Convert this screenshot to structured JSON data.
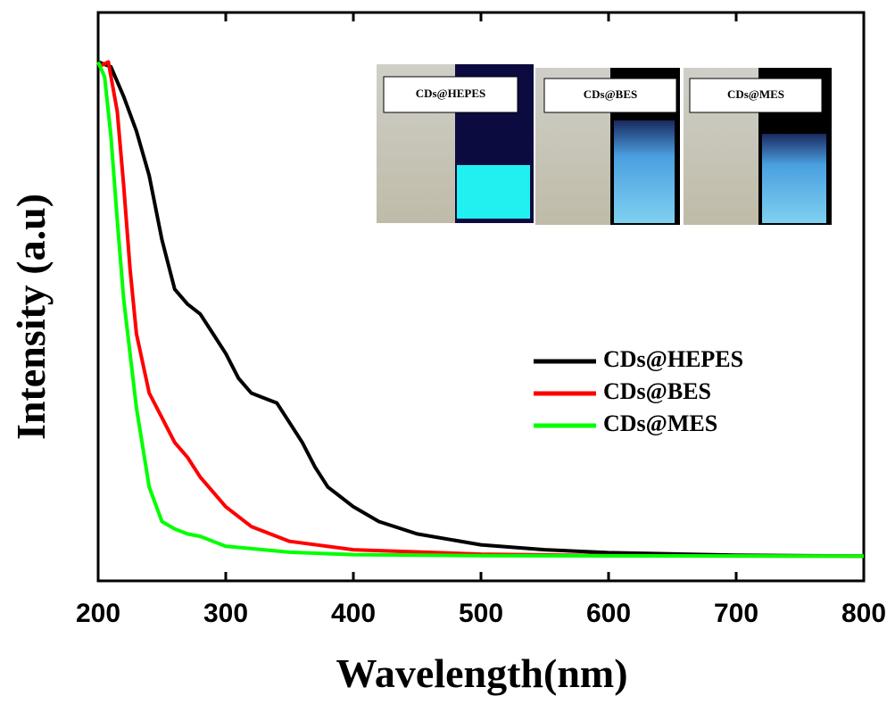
{
  "chart_data": {
    "type": "line",
    "x_label": "Wavelength(nm)",
    "y_label": "Intensity (a.u)",
    "xlim": [
      200,
      800
    ],
    "xticks": [
      200,
      300,
      400,
      500,
      600,
      700,
      800
    ],
    "ylim": [
      -0.05,
      1.1
    ],
    "inset_labels": [
      "CDs@HEPES",
      "CDs@BES",
      "CDs@MES"
    ],
    "series": [
      {
        "name": "CDs@HEPES",
        "color": "#000000",
        "x": [
          200,
          210,
          220,
          230,
          240,
          250,
          260,
          270,
          280,
          290,
          300,
          310,
          320,
          330,
          340,
          350,
          360,
          370,
          380,
          400,
          420,
          450,
          500,
          550,
          600,
          700,
          800
        ],
        "values": [
          1.0,
          0.99,
          0.93,
          0.86,
          0.77,
          0.64,
          0.54,
          0.51,
          0.49,
          0.45,
          0.41,
          0.36,
          0.33,
          0.32,
          0.31,
          0.27,
          0.23,
          0.18,
          0.14,
          0.1,
          0.07,
          0.045,
          0.023,
          0.013,
          0.007,
          0.002,
          0
        ]
      },
      {
        "name": "CDs@BES",
        "color": "#ff0000",
        "x": [
          200,
          208,
          215,
          220,
          225,
          230,
          240,
          250,
          260,
          270,
          280,
          290,
          300,
          320,
          350,
          400,
          500,
          600,
          800
        ],
        "values": [
          0.99,
          1.0,
          0.9,
          0.75,
          0.58,
          0.45,
          0.33,
          0.28,
          0.23,
          0.2,
          0.16,
          0.13,
          0.1,
          0.06,
          0.03,
          0.013,
          0.004,
          0.001,
          0
        ]
      },
      {
        "name": "CDs@MES",
        "color": "#00ff00",
        "x": [
          200,
          205,
          210,
          215,
          220,
          230,
          240,
          250,
          260,
          270,
          280,
          290,
          300,
          350,
          400,
          500,
          800
        ],
        "values": [
          1.0,
          0.97,
          0.85,
          0.68,
          0.52,
          0.3,
          0.14,
          0.07,
          0.055,
          0.045,
          0.04,
          0.03,
          0.02,
          0.008,
          0.003,
          0.001,
          0
        ]
      }
    ]
  }
}
